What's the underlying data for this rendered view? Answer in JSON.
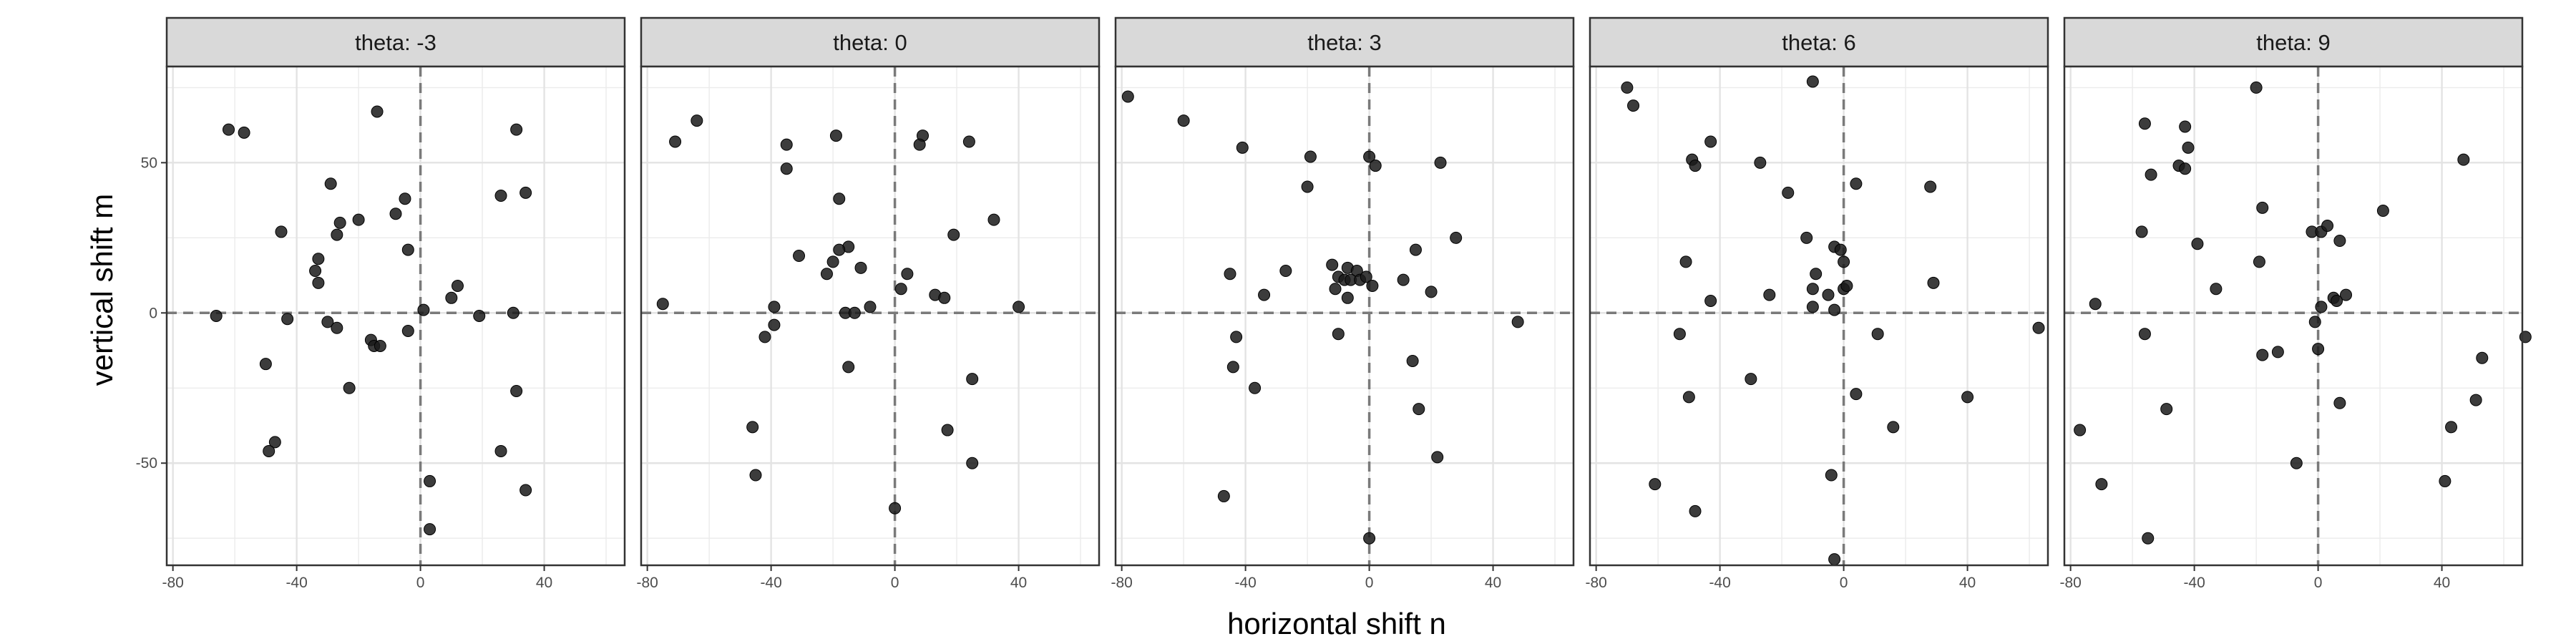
{
  "chart_data": {
    "type": "scatter",
    "facet_variable": "theta",
    "xlabel": "horizontal shift n",
    "ylabel": "vertical shift m",
    "xlim": [
      -82,
      66
    ],
    "ylim": [
      -84,
      82
    ],
    "xticks": [
      -80,
      -40,
      0,
      40
    ],
    "yticks": [
      -50,
      0,
      50
    ],
    "x_minor_gridlines": [
      -60,
      -20,
      20,
      60
    ],
    "y_minor_gridlines": [
      -75,
      -25,
      25,
      75
    ],
    "reference_lines": {
      "x": 0,
      "y": 0,
      "style": "dashed"
    },
    "grid": true,
    "point_color": "#1a1a1a",
    "panels": [
      {
        "label": "theta: -3",
        "points": [
          {
            "x": -62,
            "y": 61
          },
          {
            "x": -57,
            "y": 60
          },
          {
            "x": -14,
            "y": 67
          },
          {
            "x": 31,
            "y": 61
          },
          {
            "x": -29,
            "y": 43
          },
          {
            "x": -45,
            "y": 27
          },
          {
            "x": -26,
            "y": 30
          },
          {
            "x": -20,
            "y": 31
          },
          {
            "x": -27,
            "y": 26
          },
          {
            "x": -8,
            "y": 33
          },
          {
            "x": -5,
            "y": 38
          },
          {
            "x": 26,
            "y": 39
          },
          {
            "x": 34,
            "y": 40
          },
          {
            "x": -33,
            "y": 18
          },
          {
            "x": -34,
            "y": 14
          },
          {
            "x": -33,
            "y": 10
          },
          {
            "x": -4,
            "y": 21
          },
          {
            "x": 12,
            "y": 9
          },
          {
            "x": 10,
            "y": 5
          },
          {
            "x": 1,
            "y": 1
          },
          {
            "x": -66,
            "y": -1
          },
          {
            "x": -43,
            "y": -2
          },
          {
            "x": -30,
            "y": -3
          },
          {
            "x": -27,
            "y": -5
          },
          {
            "x": -4,
            "y": -6
          },
          {
            "x": -16,
            "y": -9
          },
          {
            "x": -15,
            "y": -11
          },
          {
            "x": -13,
            "y": -11
          },
          {
            "x": 19,
            "y": -1
          },
          {
            "x": 30,
            "y": 0
          },
          {
            "x": -50,
            "y": -17
          },
          {
            "x": -23,
            "y": -25
          },
          {
            "x": 31,
            "y": -26
          },
          {
            "x": -47,
            "y": -43
          },
          {
            "x": -49,
            "y": -46
          },
          {
            "x": 26,
            "y": -46
          },
          {
            "x": 3,
            "y": -56
          },
          {
            "x": 34,
            "y": -59
          },
          {
            "x": 3,
            "y": -72
          }
        ]
      },
      {
        "label": "theta: 0",
        "points": [
          {
            "x": -64,
            "y": 64
          },
          {
            "x": -71,
            "y": 57
          },
          {
            "x": -35,
            "y": 56
          },
          {
            "x": -35,
            "y": 48
          },
          {
            "x": -19,
            "y": 59
          },
          {
            "x": 9,
            "y": 59
          },
          {
            "x": 8,
            "y": 56
          },
          {
            "x": 24,
            "y": 57
          },
          {
            "x": -18,
            "y": 38
          },
          {
            "x": 32,
            "y": 31
          },
          {
            "x": 19,
            "y": 26
          },
          {
            "x": -15,
            "y": 22
          },
          {
            "x": -18,
            "y": 21
          },
          {
            "x": -31,
            "y": 19
          },
          {
            "x": -20,
            "y": 17
          },
          {
            "x": -11,
            "y": 15
          },
          {
            "x": -22,
            "y": 13
          },
          {
            "x": 4,
            "y": 13
          },
          {
            "x": 2,
            "y": 8
          },
          {
            "x": 13,
            "y": 6
          },
          {
            "x": 16,
            "y": 5
          },
          {
            "x": -75,
            "y": 3
          },
          {
            "x": -39,
            "y": 2
          },
          {
            "x": -8,
            "y": 2
          },
          {
            "x": -16,
            "y": 0
          },
          {
            "x": -13,
            "y": 0
          },
          {
            "x": 40,
            "y": 2
          },
          {
            "x": -39,
            "y": -4
          },
          {
            "x": -42,
            "y": -8
          },
          {
            "x": -15,
            "y": -18
          },
          {
            "x": 25,
            "y": -22
          },
          {
            "x": -46,
            "y": -38
          },
          {
            "x": 17,
            "y": -39
          },
          {
            "x": 25,
            "y": -50
          },
          {
            "x": -45,
            "y": -54
          },
          {
            "x": 0,
            "y": -65
          }
        ]
      },
      {
        "label": "theta: 3",
        "points": [
          {
            "x": -78,
            "y": 72
          },
          {
            "x": -60,
            "y": 64
          },
          {
            "x": -41,
            "y": 55
          },
          {
            "x": -19,
            "y": 52
          },
          {
            "x": 0,
            "y": 52
          },
          {
            "x": 2,
            "y": 49
          },
          {
            "x": 23,
            "y": 50
          },
          {
            "x": -20,
            "y": 42
          },
          {
            "x": 28,
            "y": 25
          },
          {
            "x": 15,
            "y": 21
          },
          {
            "x": -12,
            "y": 16
          },
          {
            "x": -7,
            "y": 15
          },
          {
            "x": -27,
            "y": 14
          },
          {
            "x": -45,
            "y": 13
          },
          {
            "x": -4,
            "y": 14
          },
          {
            "x": -10,
            "y": 12
          },
          {
            "x": -8,
            "y": 11
          },
          {
            "x": -6,
            "y": 11
          },
          {
            "x": -3,
            "y": 11
          },
          {
            "x": -1,
            "y": 12
          },
          {
            "x": 1,
            "y": 9
          },
          {
            "x": -11,
            "y": 8
          },
          {
            "x": -7,
            "y": 5
          },
          {
            "x": 11,
            "y": 11
          },
          {
            "x": 20,
            "y": 7
          },
          {
            "x": -34,
            "y": 6
          },
          {
            "x": -43,
            "y": -8
          },
          {
            "x": -10,
            "y": -7
          },
          {
            "x": 48,
            "y": -3
          },
          {
            "x": -44,
            "y": -18
          },
          {
            "x": 14,
            "y": -16
          },
          {
            "x": -37,
            "y": -25
          },
          {
            "x": 16,
            "y": -32
          },
          {
            "x": 22,
            "y": -48
          },
          {
            "x": -47,
            "y": -61
          },
          {
            "x": 0,
            "y": -75
          }
        ]
      },
      {
        "label": "theta: 6",
        "points": [
          {
            "x": -70,
            "y": 75
          },
          {
            "x": -68,
            "y": 69
          },
          {
            "x": -10,
            "y": 77
          },
          {
            "x": -43,
            "y": 57
          },
          {
            "x": -49,
            "y": 51
          },
          {
            "x": -48,
            "y": 49
          },
          {
            "x": -27,
            "y": 50
          },
          {
            "x": 4,
            "y": 43
          },
          {
            "x": 28,
            "y": 42
          },
          {
            "x": -18,
            "y": 40
          },
          {
            "x": -12,
            "y": 25
          },
          {
            "x": -3,
            "y": 22
          },
          {
            "x": 0,
            "y": 17
          },
          {
            "x": -1,
            "y": 21
          },
          {
            "x": -51,
            "y": 17
          },
          {
            "x": -9,
            "y": 13
          },
          {
            "x": 29,
            "y": 10
          },
          {
            "x": -24,
            "y": 6
          },
          {
            "x": -5,
            "y": 6
          },
          {
            "x": -10,
            "y": 8
          },
          {
            "x": 0,
            "y": 8
          },
          {
            "x": 1,
            "y": 9
          },
          {
            "x": -43,
            "y": 4
          },
          {
            "x": -10,
            "y": 2
          },
          {
            "x": -3,
            "y": 1
          },
          {
            "x": -53,
            "y": -7
          },
          {
            "x": 11,
            "y": -7
          },
          {
            "x": -30,
            "y": -22
          },
          {
            "x": 4,
            "y": -27
          },
          {
            "x": -50,
            "y": -28
          },
          {
            "x": 16,
            "y": -38
          },
          {
            "x": 40,
            "y": -28
          },
          {
            "x": 63,
            "y": -5
          },
          {
            "x": -4,
            "y": -54
          },
          {
            "x": -61,
            "y": -57
          },
          {
            "x": -48,
            "y": -66
          },
          {
            "x": -3,
            "y": -82
          }
        ]
      },
      {
        "label": "theta: 9",
        "points": [
          {
            "x": -20,
            "y": 75
          },
          {
            "x": -56,
            "y": 63
          },
          {
            "x": -43,
            "y": 62
          },
          {
            "x": -42,
            "y": 55
          },
          {
            "x": -45,
            "y": 49
          },
          {
            "x": -43,
            "y": 48
          },
          {
            "x": -54,
            "y": 46
          },
          {
            "x": 47,
            "y": 51
          },
          {
            "x": -18,
            "y": 35
          },
          {
            "x": 21,
            "y": 34
          },
          {
            "x": -57,
            "y": 27
          },
          {
            "x": -2,
            "y": 27
          },
          {
            "x": 1,
            "y": 27
          },
          {
            "x": 3,
            "y": 29
          },
          {
            "x": 7,
            "y": 24
          },
          {
            "x": -39,
            "y": 23
          },
          {
            "x": -19,
            "y": 17
          },
          {
            "x": -33,
            "y": 8
          },
          {
            "x": 9,
            "y": 6
          },
          {
            "x": 5,
            "y": 5
          },
          {
            "x": 6,
            "y": 4
          },
          {
            "x": 1,
            "y": 2
          },
          {
            "x": -72,
            "y": 3
          },
          {
            "x": -1,
            "y": -3
          },
          {
            "x": -56,
            "y": -7
          },
          {
            "x": 67,
            "y": -8
          },
          {
            "x": 0,
            "y": -12
          },
          {
            "x": -13,
            "y": -13
          },
          {
            "x": -18,
            "y": -14
          },
          {
            "x": 53,
            "y": -15
          },
          {
            "x": 7,
            "y": -30
          },
          {
            "x": -49,
            "y": -32
          },
          {
            "x": 51,
            "y": -29
          },
          {
            "x": 43,
            "y": -38
          },
          {
            "x": -77,
            "y": -39
          },
          {
            "x": -7,
            "y": -50
          },
          {
            "x": 41,
            "y": -56
          },
          {
            "x": -70,
            "y": -57
          },
          {
            "x": -55,
            "y": -75
          }
        ]
      }
    ]
  }
}
